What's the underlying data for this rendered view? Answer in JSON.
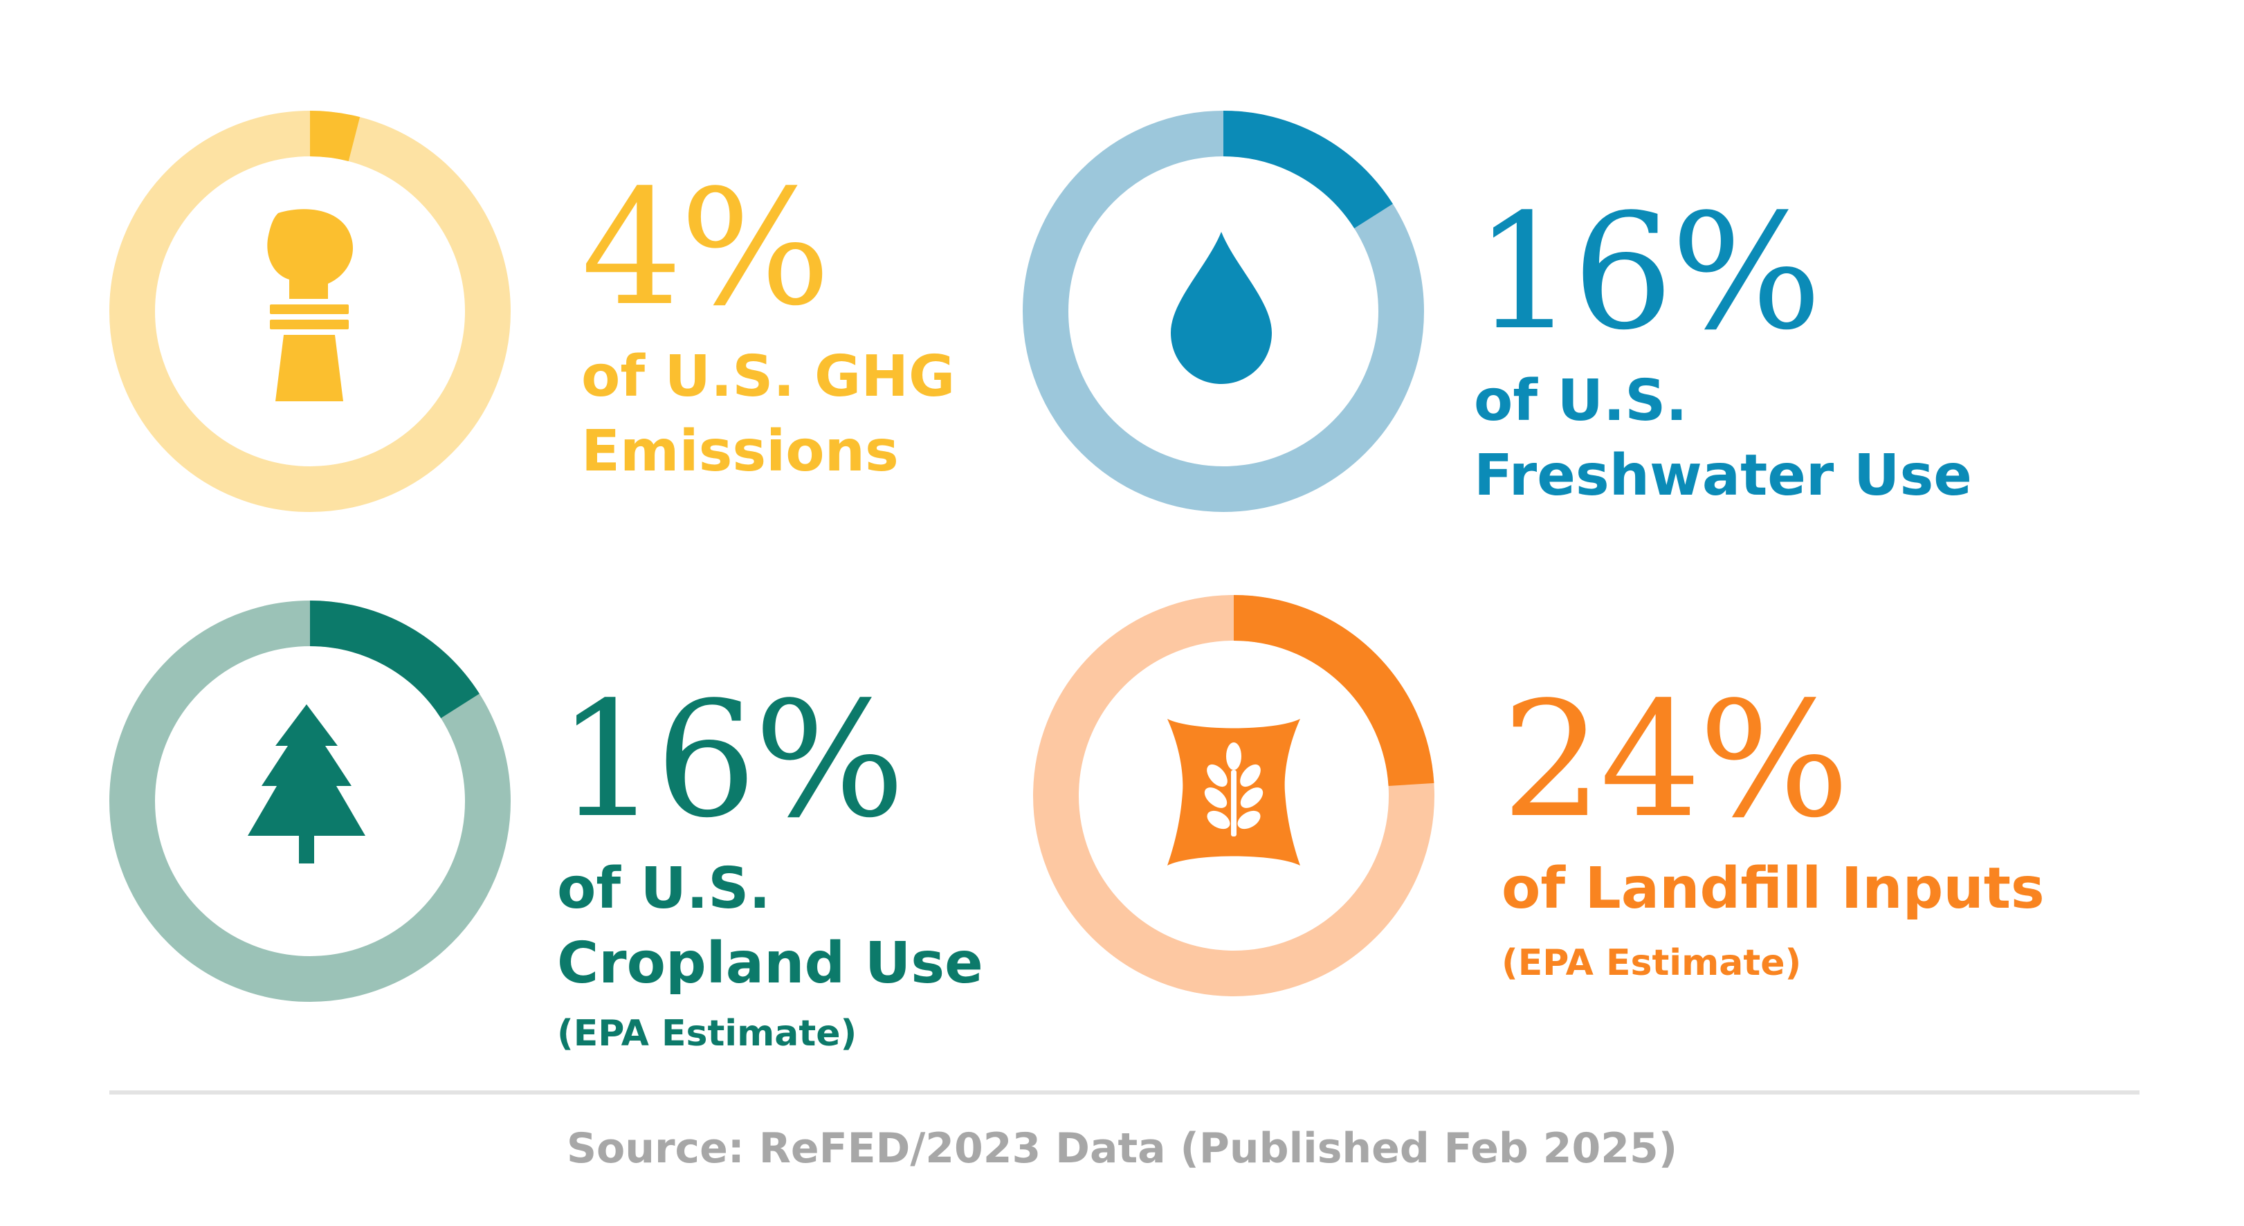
{
  "chart_data": {
    "type": "pie",
    "items": [
      {
        "id": "ghg",
        "value": 4,
        "percent_label": "4%",
        "label_lines": [
          "of U.S. GHG",
          "Emissions"
        ],
        "note": "",
        "icon": "chimney-icon",
        "colors": {
          "accent": "#fbbf2f",
          "track": "#fde2a3",
          "text": "#fbbf2f"
        }
      },
      {
        "id": "freshwater",
        "value": 16,
        "percent_label": "16%",
        "label_lines": [
          "of U.S.",
          "Freshwater Use"
        ],
        "note": "",
        "icon": "water-drop-icon",
        "colors": {
          "accent": "#0b8bb7",
          "track": "#9cc7db",
          "text": "#0b8bb7"
        }
      },
      {
        "id": "cropland",
        "value": 16,
        "percent_label": "16%",
        "label_lines": [
          "of U.S.",
          "Cropland Use"
        ],
        "note": "(EPA Estimate)",
        "icon": "tree-icon",
        "colors": {
          "accent": "#0c7a6a",
          "track": "#9bc2b7",
          "text": "#0c7a6a"
        }
      },
      {
        "id": "landfill",
        "value": 24,
        "percent_label": "24%",
        "label_lines": [
          "of Landfill Inputs"
        ],
        "note": "(EPA Estimate)",
        "icon": "grain-sack-icon",
        "colors": {
          "accent": "#f98420",
          "track": "#fdc8a2",
          "text": "#f98420"
        }
      }
    ]
  },
  "footer": {
    "source": "Source: ReFED/2023 Data (Published Feb 2025)"
  }
}
